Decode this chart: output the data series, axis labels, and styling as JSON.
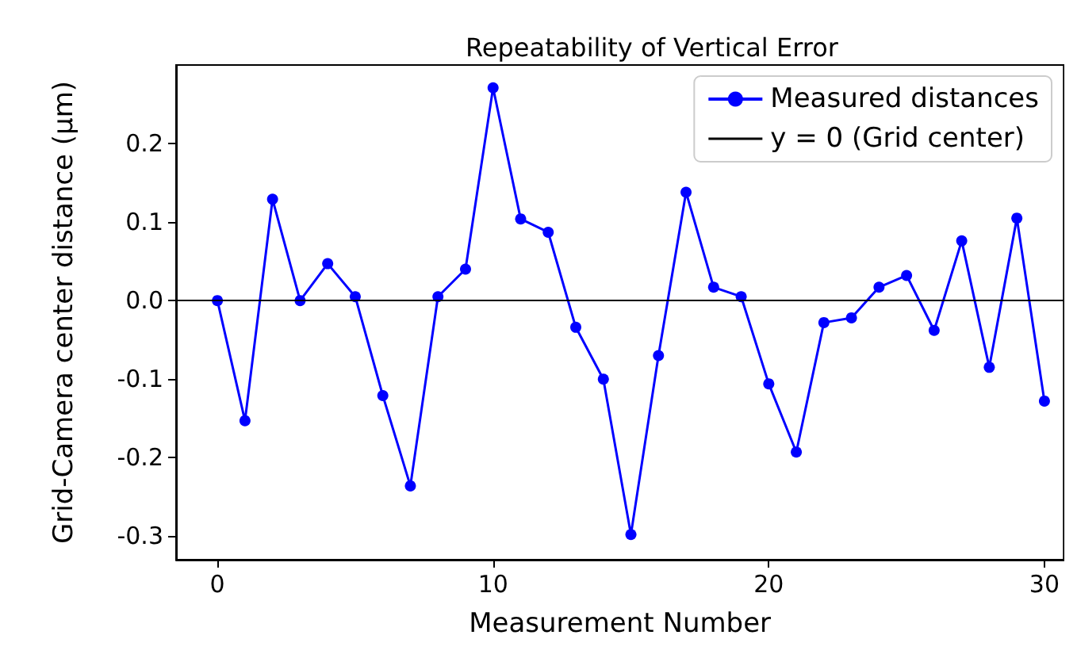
{
  "chart_data": {
    "type": "line",
    "title": "Repeatability of Vertical Error",
    "xlabel": "Measurement Number",
    "ylabel": "Grid-Camera center distance (µm)",
    "x": [
      0,
      1,
      2,
      3,
      4,
      5,
      6,
      7,
      8,
      9,
      10,
      11,
      12,
      13,
      14,
      15,
      16,
      17,
      18,
      19,
      20,
      21,
      22,
      23,
      24,
      25,
      26,
      27,
      28,
      29,
      30
    ],
    "series": [
      {
        "name": "Measured distances",
        "color": "#0000ff",
        "values": [
          0.0,
          -0.153,
          0.129,
          0.0,
          0.047,
          0.005,
          -0.121,
          -0.236,
          0.005,
          0.04,
          0.271,
          0.104,
          0.087,
          -0.034,
          -0.1,
          -0.298,
          -0.07,
          0.138,
          0.017,
          0.005,
          -0.106,
          -0.193,
          -0.028,
          -0.022,
          0.017,
          0.032,
          -0.038,
          0.076,
          -0.085,
          0.105,
          -0.128
        ]
      }
    ],
    "ref_lines": [
      {
        "axis": "y",
        "value": 0,
        "label": "y = 0 (Grid center)",
        "color": "#000000",
        "line_style": "solid"
      }
    ],
    "xlim": [
      -1.5,
      30.7
    ],
    "xticks": [
      0,
      10,
      20,
      30
    ],
    "ylim": [
      -0.33,
      0.3
    ],
    "yticks": [
      -0.3,
      -0.2,
      -0.1,
      {
        "value": 0,
        "label": "0.0"
      },
      0.1,
      0.2
    ],
    "grid": false,
    "legend": "top right",
    "marker": "circle",
    "line_style": "solid"
  }
}
